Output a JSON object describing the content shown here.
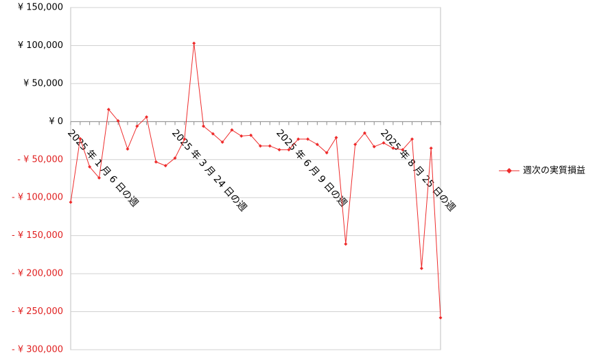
{
  "chart_data": {
    "type": "line",
    "categories": [
      "2025 年 1 月 6 日の週",
      null,
      null,
      null,
      null,
      null,
      null,
      null,
      null,
      null,
      null,
      "2025 年 3 月 24 日の週",
      null,
      null,
      null,
      null,
      null,
      null,
      null,
      null,
      null,
      null,
      "2025 年 6 月 9 日の週",
      null,
      null,
      null,
      null,
      null,
      null,
      null,
      null,
      null,
      null,
      "2025 年 8 月 25 日の週",
      null,
      null,
      null,
      null,
      null,
      null
    ],
    "series": [
      {
        "name": "週次の実質損益",
        "color": "#ee2b2b",
        "values": [
          -106000,
          -22500,
          -59500,
          -74000,
          16000,
          1000,
          -36000,
          -6000,
          6000,
          -53000,
          -58000,
          -48000,
          -23000,
          103000,
          -6000,
          -16000,
          -27000,
          -11000,
          -19000,
          -18000,
          -32000,
          -32000,
          -37000,
          -37000,
          -23000,
          -23000,
          -30000,
          -41000,
          -21000,
          -161000,
          -30000,
          -15000,
          -33000,
          -28000,
          -35000,
          -37000,
          -23000,
          -193000,
          -35000,
          -258000
        ]
      }
    ],
    "ylim": [
      -300000,
      150000
    ],
    "yticks": [
      {
        "value": -300000,
        "label": "- ¥ 300,000"
      },
      {
        "value": -250000,
        "label": "- ¥ 250,000"
      },
      {
        "value": -200000,
        "label": "- ¥ 200,000"
      },
      {
        "value": -150000,
        "label": "- ¥ 150,000"
      },
      {
        "value": -100000,
        "label": "- ¥ 100,000"
      },
      {
        "value": -50000,
        "label": "- ¥ 50,000"
      },
      {
        "value": 0,
        "label": "¥ 0"
      },
      {
        "value": 50000,
        "label": "¥ 50,000"
      },
      {
        "value": 100000,
        "label": "¥ 100,000"
      },
      {
        "value": 150000,
        "label": "¥ 150,000"
      }
    ],
    "negative_tick_color": "#e02020",
    "grid": true,
    "legend": "right"
  }
}
